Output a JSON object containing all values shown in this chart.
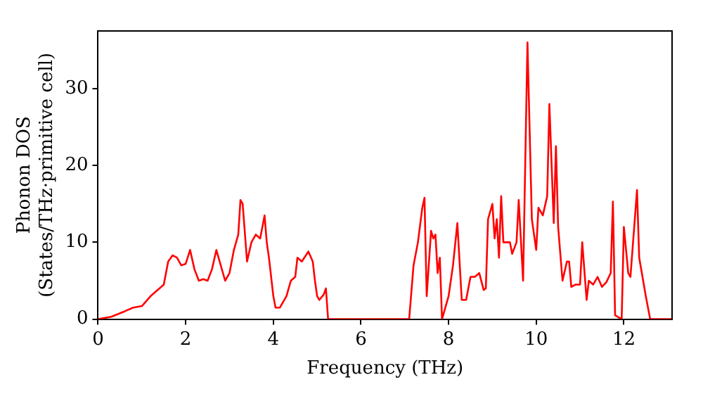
{
  "chart_data": {
    "type": "line",
    "xlabel": "Frequency (THz)",
    "ylabel": "Phonon DOS\n(States/THz·primitive cell)",
    "xlim": [
      0,
      13.1
    ],
    "ylim": [
      0,
      37.5
    ],
    "xticks": [
      0,
      2,
      4,
      6,
      8,
      10,
      12
    ],
    "yticks": [
      0,
      10,
      20,
      30
    ],
    "grid": false,
    "legend": false,
    "marker": "none",
    "line_style": "solid",
    "series": [
      {
        "color": "#ff0000",
        "x": [
          0,
          0.3,
          0.6,
          0.8,
          1.0,
          1.2,
          1.4,
          1.5,
          1.6,
          1.7,
          1.8,
          1.9,
          2.0,
          2.1,
          2.2,
          2.3,
          2.4,
          2.5,
          2.6,
          2.7,
          2.8,
          2.9,
          3.0,
          3.1,
          3.2,
          3.25,
          3.3,
          3.4,
          3.5,
          3.6,
          3.7,
          3.8,
          3.85,
          3.9,
          4.0,
          4.05,
          4.15,
          4.3,
          4.4,
          4.5,
          4.55,
          4.65,
          4.8,
          4.9,
          4.95,
          5.0,
          5.05,
          5.15,
          5.2,
          5.25,
          7.1,
          7.2,
          7.3,
          7.4,
          7.45,
          7.5,
          7.6,
          7.65,
          7.7,
          7.75,
          7.8,
          7.85,
          8.0,
          8.1,
          8.2,
          8.3,
          8.4,
          8.5,
          8.6,
          8.7,
          8.8,
          8.85,
          8.9,
          9.0,
          9.05,
          9.1,
          9.15,
          9.2,
          9.25,
          9.4,
          9.45,
          9.55,
          9.6,
          9.7,
          9.8,
          9.9,
          10.0,
          10.05,
          10.15,
          10.25,
          10.3,
          10.4,
          10.45,
          10.5,
          10.6,
          10.7,
          10.75,
          10.8,
          10.9,
          11.0,
          11.05,
          11.15,
          11.2,
          11.3,
          11.4,
          11.5,
          11.6,
          11.7,
          11.75,
          11.8,
          11.95,
          12.0,
          12.1,
          12.15,
          12.3,
          12.35,
          12.5,
          12.6,
          13.1
        ],
        "values": [
          0,
          0.3,
          1,
          1.5,
          1.7,
          3,
          4,
          4.5,
          7.5,
          8.3,
          8,
          7,
          7.2,
          9,
          6.5,
          5,
          5.2,
          5,
          6.5,
          9,
          7,
          5,
          6,
          9,
          11,
          15.5,
          15,
          7.5,
          10,
          11,
          10.5,
          13.5,
          10,
          8,
          3,
          1.5,
          1.5,
          3,
          5,
          5.5,
          8,
          7.5,
          8.8,
          7.5,
          5,
          3,
          2.5,
          3.2,
          4,
          0,
          0,
          7,
          10,
          14.5,
          15.8,
          3,
          11.5,
          10.5,
          11,
          6,
          8,
          0,
          3,
          7,
          12.5,
          2.5,
          2.5,
          5.5,
          5.5,
          6,
          3.8,
          4,
          13,
          15,
          10.5,
          13,
          8,
          16,
          10,
          10,
          8.5,
          10,
          15.5,
          5,
          36,
          13,
          9,
          14.5,
          13.5,
          16,
          28,
          12.5,
          22.5,
          12,
          5,
          7.5,
          7.5,
          4.2,
          4.5,
          4.5,
          10,
          2.5,
          5,
          4.5,
          5.5,
          4.2,
          4.8,
          6,
          15.3,
          0.5,
          0,
          12,
          6,
          5.5,
          16.8,
          8,
          3,
          0,
          0
        ]
      }
    ]
  }
}
